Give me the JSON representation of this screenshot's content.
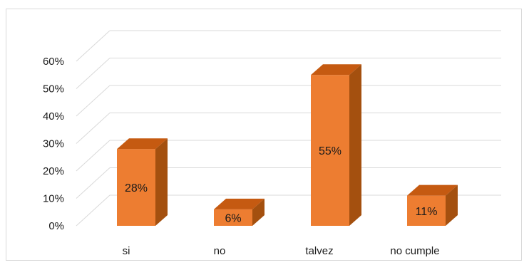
{
  "chart_data": {
    "type": "bar",
    "style": "3d-column",
    "categories": [
      "si",
      "no",
      "talvez",
      "no cumple"
    ],
    "values": [
      28,
      6,
      55,
      11
    ],
    "data_labels": [
      "28%",
      "6%",
      "55%",
      "11%"
    ],
    "ylim": [
      0,
      60
    ],
    "yticks": [
      "0%",
      "10%",
      "20%",
      "30%",
      "40%",
      "50%",
      "60%"
    ],
    "grid": true,
    "legend": "none",
    "colors": {
      "front": "#ED7D31",
      "top": "#C55A11",
      "side": "#A4500F"
    }
  }
}
